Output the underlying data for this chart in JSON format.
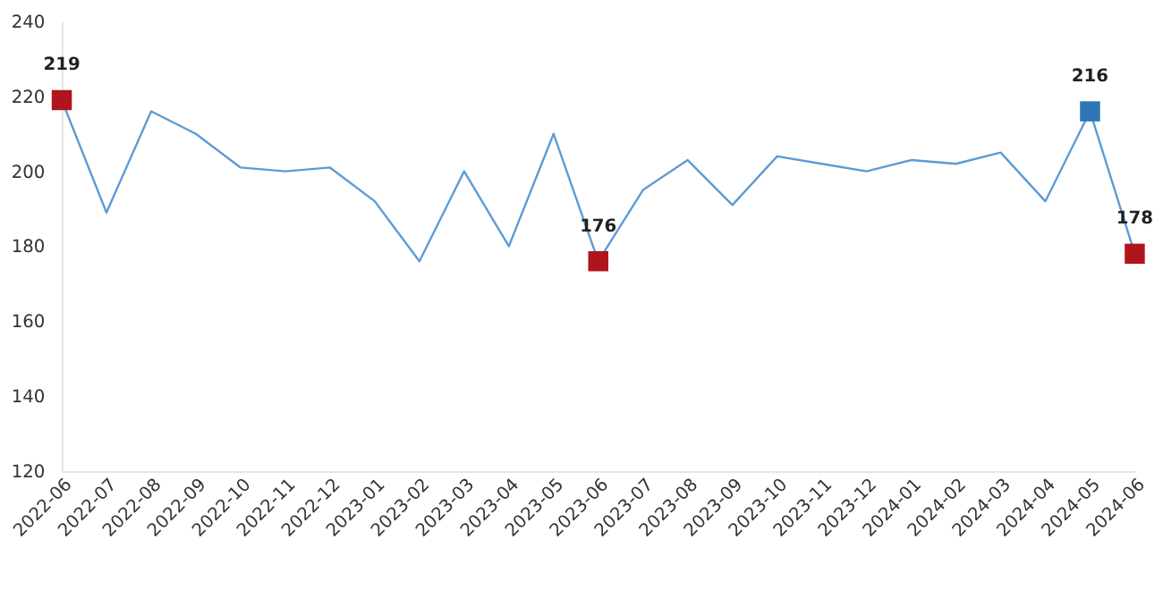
{
  "chart_data": {
    "type": "line",
    "categories": [
      "2022-06",
      "2022-07",
      "2022-08",
      "2022-09",
      "2022-10",
      "2022-11",
      "2022-12",
      "2023-01",
      "2023-02",
      "2023-03",
      "2023-04",
      "2023-05",
      "2023-06",
      "2023-07",
      "2023-08",
      "2023-09",
      "2023-10",
      "2023-11",
      "2023-12",
      "2024-01",
      "2024-02",
      "2024-03",
      "2024-04",
      "2024-05",
      "2024-06"
    ],
    "series": [
      {
        "type": "line",
        "color": "#5b9bd5",
        "values": [
          219,
          189,
          216,
          210,
          201,
          200,
          201,
          192,
          176,
          200,
          180,
          210,
          176,
          195,
          203,
          191,
          204,
          202,
          200,
          203,
          202,
          205,
          192,
          216,
          178
        ]
      },
      {
        "type": "scatter",
        "marker": "square",
        "values": [
          219,
          null,
          null,
          null,
          null,
          null,
          null,
          null,
          null,
          null,
          null,
          null,
          176,
          null,
          null,
          null,
          null,
          null,
          null,
          null,
          null,
          null,
          null,
          216,
          178
        ],
        "colors": [
          "#b0151d",
          null,
          null,
          null,
          null,
          null,
          null,
          null,
          null,
          null,
          null,
          null,
          "#b0151d",
          null,
          null,
          null,
          null,
          null,
          null,
          null,
          null,
          null,
          null,
          "#2e75b6",
          "#b0151d"
        ],
        "value_labels": [
          "219",
          null,
          null,
          null,
          null,
          null,
          null,
          null,
          null,
          null,
          null,
          null,
          "176",
          null,
          null,
          null,
          null,
          null,
          null,
          null,
          null,
          null,
          null,
          "216",
          "178"
        ]
      }
    ],
    "ylim": [
      120,
      240
    ],
    "yticks": [
      120,
      140,
      160,
      180,
      200,
      220,
      240
    ],
    "grid": false
  }
}
